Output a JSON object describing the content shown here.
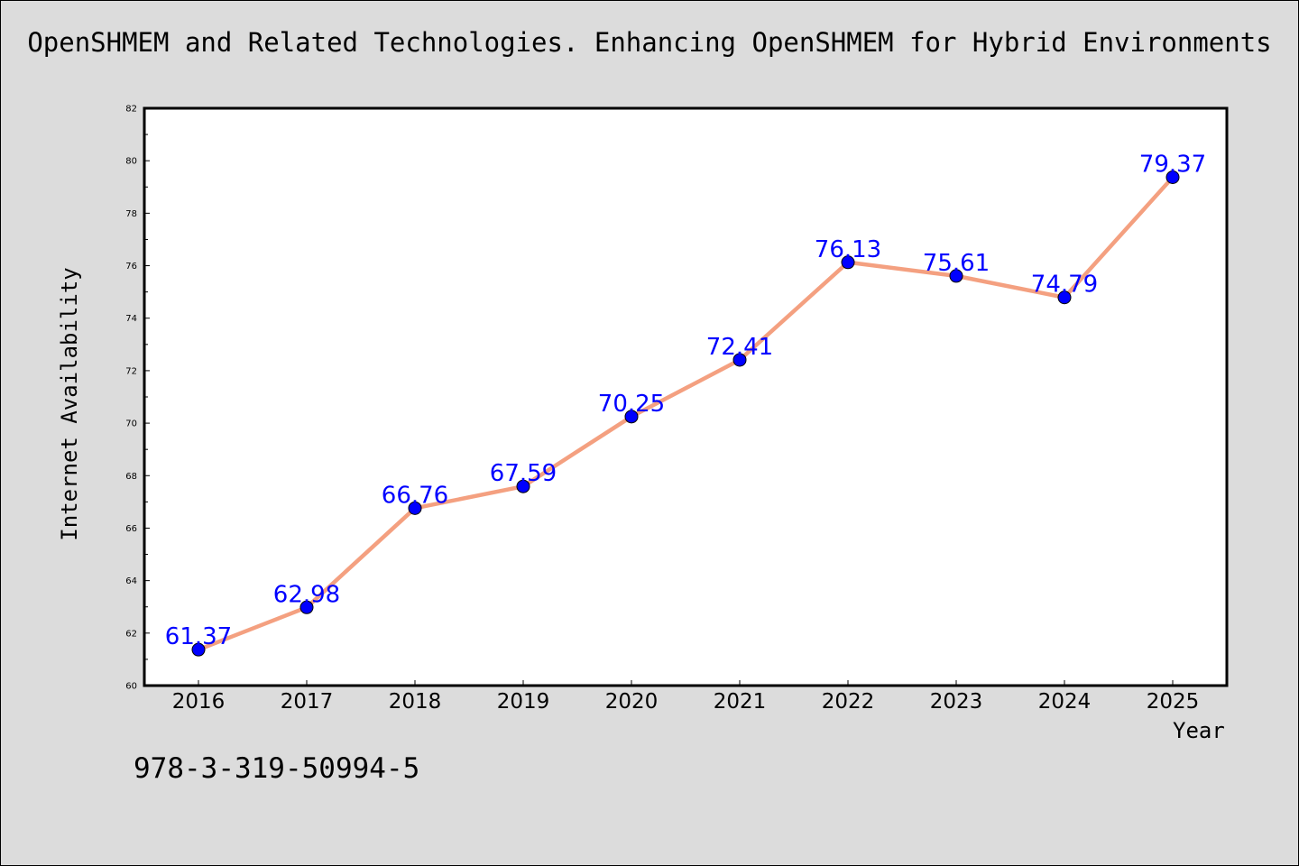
{
  "title": "OpenSHMEM and Related Technologies. Enhancing OpenSHMEM for Hybrid Environments",
  "footer_text": "978-3-319-50994-5",
  "chart_data": {
    "type": "line",
    "title": "OpenSHMEM and Related Technologies. Enhancing OpenSHMEM for Hybrid Environments",
    "xlabel": "Year",
    "ylabel": "Internet Availability",
    "categories": [
      "2016",
      "2017",
      "2018",
      "2019",
      "2020",
      "2021",
      "2022",
      "2023",
      "2024",
      "2025"
    ],
    "values": [
      61.37,
      62.98,
      66.76,
      67.59,
      70.25,
      72.41,
      76.13,
      75.61,
      74.79,
      79.37
    ],
    "data_labels": [
      "61.37",
      "62.98",
      "66.76",
      "67.59",
      "70.25",
      "72.41",
      "76.13",
      "75.61",
      "74.79",
      "79.37"
    ],
    "ylim": [
      60,
      82
    ],
    "yticks": [
      60,
      62,
      64,
      66,
      68,
      70,
      72,
      74,
      76,
      78,
      80,
      82
    ],
    "grid": false,
    "line_color": "#f4a080",
    "marker_color": "#0000ff",
    "label_color": "#0000ff",
    "background_color": "#dcdcdc",
    "plot_background_color": "#ffffff"
  }
}
